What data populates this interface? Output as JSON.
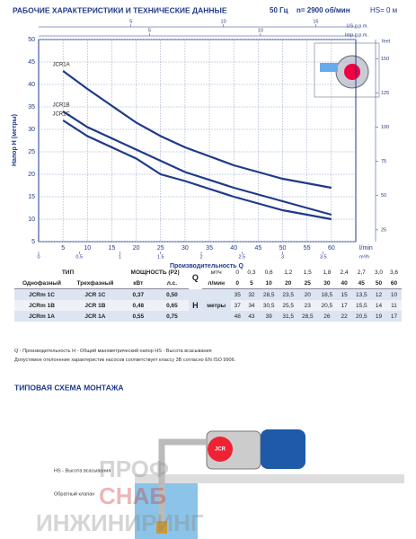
{
  "header": {
    "title": "РАБОЧИЕ ХАРАКТЕРИСТИКИ И ТЕХНИЧЕСКИЕ ДАННЫЕ",
    "freq": "50 Гц",
    "speed": "n= 2900 об/мин",
    "hs": "HS= 0 м"
  },
  "chart_data": {
    "type": "line",
    "ylabel": "Напор H (метры)",
    "xlabel": "Производительность Q",
    "x_unit": "l/min",
    "x2_unit": "m³/h",
    "top_unit1": "US g.p.m.",
    "top_unit2": "Imp g.p.m.",
    "y2_unit": "feet",
    "x": [
      5,
      10,
      20,
      25,
      30,
      40,
      45,
      50,
      60
    ],
    "series": [
      {
        "name": "JCR1A",
        "color": "#1f3a8a",
        "values": [
          43,
          39,
          31.5,
          28.5,
          26,
          22,
          20.5,
          19,
          17
        ]
      },
      {
        "name": "JCR1B",
        "color": "#1f3a8a",
        "values": [
          34,
          30.5,
          25.5,
          23,
          20.5,
          17,
          15.5,
          14,
          11
        ]
      },
      {
        "name": "JCR1C",
        "color": "#1f3a8a",
        "values": [
          32,
          28.5,
          23.5,
          20,
          18.5,
          15,
          13.5,
          12,
          10
        ]
      }
    ],
    "xlim": [
      0,
      65
    ],
    "xticks": [
      5,
      10,
      15,
      20,
      25,
      30,
      35,
      40,
      45,
      50,
      55,
      60
    ],
    "ylim": [
      5,
      50
    ],
    "yticks": [
      5,
      10,
      15,
      20,
      25,
      30,
      35,
      40,
      45,
      50
    ],
    "x2lim": [
      0,
      3.9
    ],
    "x2ticks": [
      0,
      0.5,
      1,
      1.5,
      2,
      2.5,
      3,
      3.5
    ],
    "x3lim": [
      0,
      17.17
    ],
    "x3ticks": [
      5,
      10,
      15
    ],
    "x4lim": [
      0,
      14.3
    ],
    "x4ticks": [
      5,
      10
    ],
    "y2lim": [
      16.4,
      164
    ],
    "y2ticks": [
      25,
      50,
      75,
      100,
      125,
      150
    ],
    "grid": true
  },
  "table": {
    "type_h": "ТИП",
    "single": "Однофазный",
    "three": "Трехфазный",
    "power": "МОЩНОСТЬ (P2)",
    "kw": "кВт",
    "hp": "л.с.",
    "q": "Q",
    "h": "H",
    "m3h": "м³/ч",
    "lmin": "л/мин",
    "metry": "метры",
    "q_m3h": [
      "0",
      "0,3",
      "0,6",
      "1,2",
      "1,5",
      "1,8",
      "2,4",
      "2,7",
      "3,0",
      "3,6"
    ],
    "q_lmin": [
      "0",
      "5",
      "10",
      "20",
      "25",
      "30",
      "40",
      "45",
      "50",
      "60"
    ],
    "rows": [
      {
        "single": "JCRm 1C",
        "three": "JCR 1C",
        "kw": "0,37",
        "hp": "0,50",
        "h": [
          "35",
          "32",
          "28,5",
          "23,5",
          "20",
          "18,5",
          "15",
          "13,5",
          "12",
          "10"
        ]
      },
      {
        "single": "JCRm 1B",
        "three": "JCR 1B",
        "kw": "0,48",
        "hp": "0,65",
        "h": [
          "37",
          "34",
          "30,5",
          "25,5",
          "23",
          "20,5",
          "17",
          "15,5",
          "14",
          "11"
        ]
      },
      {
        "single": "JCRm 1A",
        "three": "JCR 1A",
        "kw": "0,55",
        "hp": "0,75",
        "h": [
          "48",
          "43",
          "39",
          "31,5",
          "28,5",
          "26",
          "22",
          "20,5",
          "19",
          "17"
        ]
      }
    ]
  },
  "notes": [
    "Q - Производительность   H - Общий манометрический напор   HS - Высота всасывания",
    "Допустимое отклонение характеристик насосов соответствует классу 3B согласно EN ISO 9906."
  ],
  "installation": {
    "title": "ТИПОВАЯ СХЕМА МОНТАЖА",
    "hs_label": "HS - Высота всасывания",
    "valve_label": "Обратный клапан",
    "logo": "JCR"
  },
  "watermark": [
    "ПРОФ",
    "СНАБ",
    "ИНЖИНИРИНГ"
  ]
}
